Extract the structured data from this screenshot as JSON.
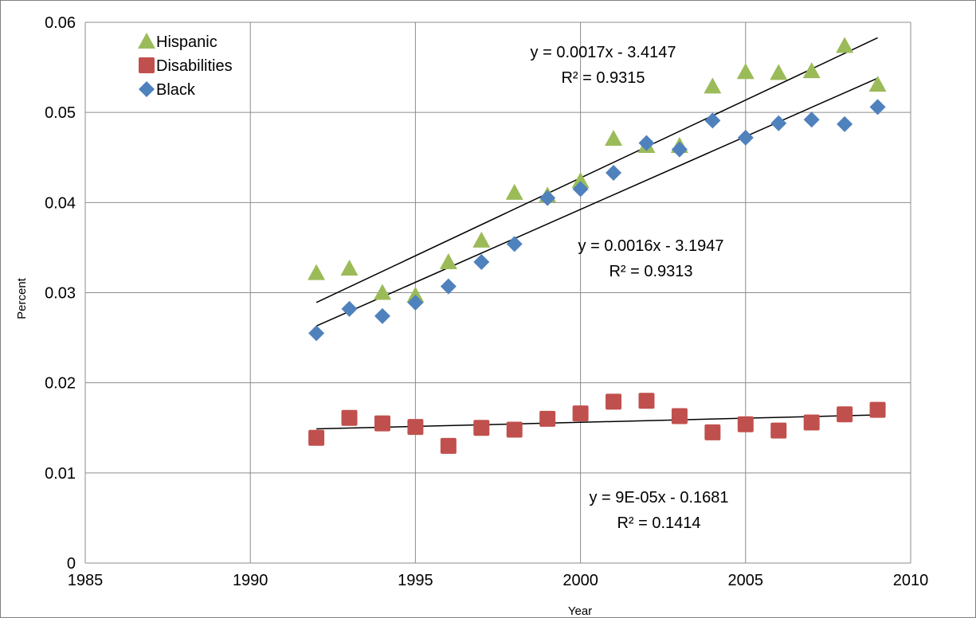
{
  "chart_data": {
    "type": "scatter",
    "xlabel": "Year",
    "ylabel": "Percent",
    "xlim": [
      1985,
      2010
    ],
    "ylim": [
      0,
      0.06
    ],
    "x_ticks": [
      "1985",
      "1990",
      "1995",
      "2000",
      "2005",
      "2010"
    ],
    "y_ticks": [
      "0",
      "0.01",
      "0.02",
      "0.03",
      "0.04",
      "0.05",
      "0.06"
    ],
    "grid": true,
    "legend_position": "top-left",
    "series": [
      {
        "name": "Hispanic",
        "marker": "triangle",
        "color": "#9bbb59",
        "x": [
          1992,
          1993,
          1994,
          1995,
          1996,
          1997,
          1998,
          1999,
          2000,
          2001,
          2002,
          2003,
          2004,
          2005,
          2006,
          2007,
          2008,
          2009
        ],
        "y": [
          0.0322,
          0.0327,
          0.03,
          0.0297,
          0.0334,
          0.0358,
          0.0411,
          0.0408,
          0.0424,
          0.0471,
          0.0463,
          0.0463,
          0.0529,
          0.0545,
          0.0544,
          0.0546,
          0.0574,
          0.0531
        ],
        "trendline": {
          "slope": 0.0017,
          "intercept": -3.4147,
          "x_range": [
            1992,
            2009
          ],
          "equation": "y = 0.0017x - 3.4147",
          "r2": "R² = 0.9315"
        }
      },
      {
        "name": "Disabilities",
        "marker": "square",
        "color": "#c0504d",
        "x": [
          1992,
          1993,
          1994,
          1995,
          1996,
          1997,
          1998,
          1999,
          2000,
          2001,
          2002,
          2003,
          2004,
          2005,
          2006,
          2007,
          2008,
          2009
        ],
        "y": [
          0.0139,
          0.0161,
          0.0155,
          0.0151,
          0.013,
          0.015,
          0.0148,
          0.016,
          0.0166,
          0.0179,
          0.018,
          0.0163,
          0.0145,
          0.0154,
          0.0147,
          0.0156,
          0.0165,
          0.017
        ],
        "trendline": {
          "slope": 9e-05,
          "intercept": -0.1681,
          "x_range": [
            1992,
            2009
          ],
          "equation": "y = 9E-05x - 0.1681",
          "r2": "R² = 0.1414"
        }
      },
      {
        "name": "Black",
        "marker": "diamond",
        "color": "#4f81bd",
        "x": [
          1992,
          1993,
          1994,
          1995,
          1996,
          1997,
          1998,
          1999,
          2000,
          2001,
          2002,
          2003,
          2004,
          2005,
          2006,
          2007,
          2008,
          2009
        ],
        "y": [
          0.0255,
          0.0282,
          0.0274,
          0.0289,
          0.0307,
          0.0334,
          0.0354,
          0.0405,
          0.0415,
          0.0433,
          0.0466,
          0.0459,
          0.0491,
          0.0472,
          0.0488,
          0.0492,
          0.0487,
          0.0506
        ],
        "trendline": {
          "slope": 0.0016,
          "intercept": -3.1947,
          "x_range": [
            1992,
            2009
          ],
          "equation": "y = 0.0016x - 3.1947",
          "r2": "R² = 0.9313"
        }
      }
    ]
  }
}
